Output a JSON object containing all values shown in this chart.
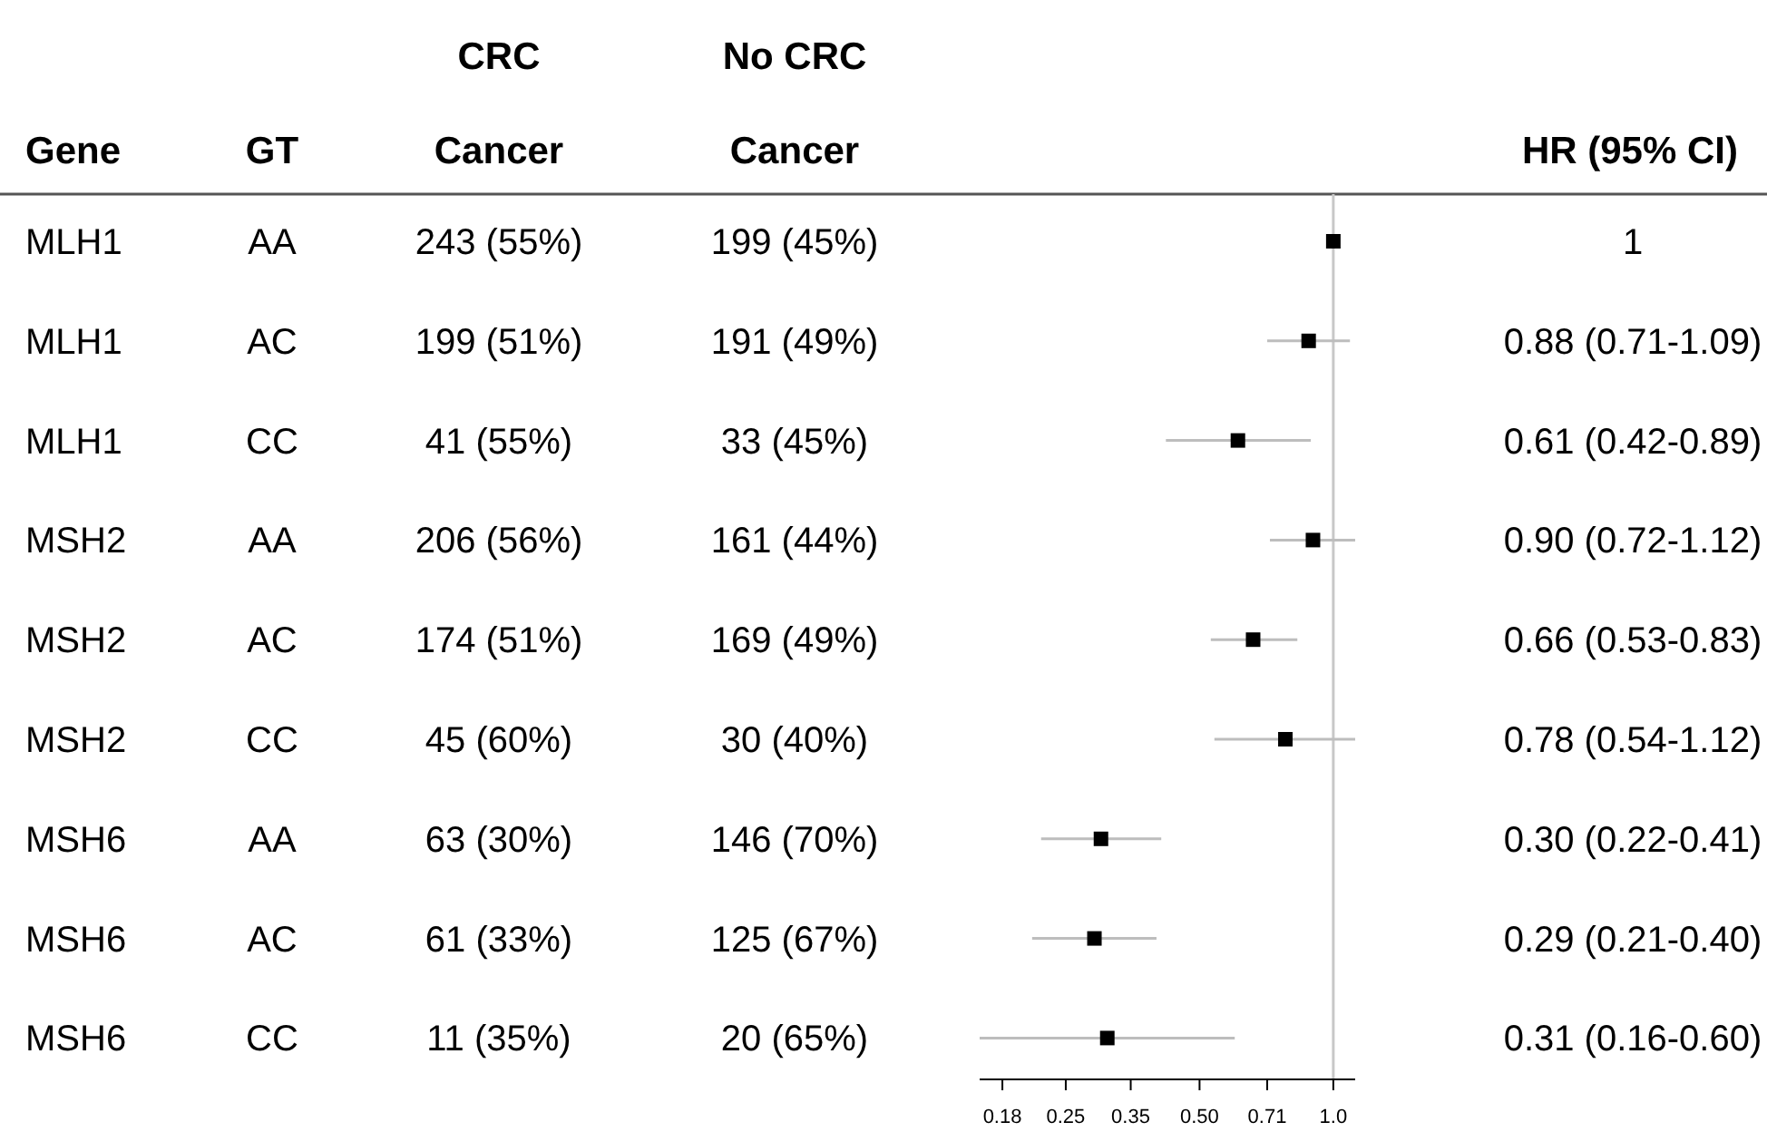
{
  "chart_data": {
    "type": "scatter",
    "orientation": "horizontal",
    "log": "x",
    "marker": "square",
    "categories": [
      null,
      null,
      null,
      null,
      null,
      null,
      null,
      null,
      null
    ],
    "series": [
      {
        "color": "#000000",
        "values": [
          1,
          0.88,
          0.61,
          0.9,
          0.66,
          0.78,
          0.3,
          0.29,
          0.31
        ],
        "errors": [
          null,
          [
            0.71,
            1.09
          ],
          [
            0.42,
            0.89
          ],
          [
            0.72,
            1.12
          ],
          [
            0.53,
            0.83
          ],
          [
            0.54,
            1.12
          ],
          [
            0.22,
            0.41
          ],
          [
            0.21,
            0.4
          ],
          [
            0.16,
            0.6
          ]
        ]
      }
    ],
    "xlim": [
      0.16,
      1.12
    ],
    "xticks": [
      0.18,
      0.25,
      0.35,
      {
        "value": 0.5,
        "label": "0.50"
      },
      0.71,
      {
        "value": 1,
        "label": "1.0"
      }
    ],
    "ref_lines": [
      {
        "axis": "x",
        "value": 1,
        "color": "#c8c8c8"
      }
    ],
    "annotations": [
      "Gene",
      "GT",
      "CRC",
      "Cancer",
      "No CRC",
      "Cancer",
      "HR (95% CI)",
      "MLH1",
      "AA",
      "243 (55%)",
      "199 (45%)",
      "1",
      "MLH1",
      "AC",
      "199 (51%)",
      "191 (49%)",
      "0.88 (0.71-1.09)",
      "MLH1",
      "CC",
      "41 (55%)",
      "33 (45%)",
      "0.61 (0.42-0.89)",
      "MSH2",
      "AA",
      "206 (56%)",
      "161 (44%)",
      "0.90 (0.72-1.12)",
      "MSH2",
      "AC",
      "174 (51%)",
      "169 (49%)",
      "0.66 (0.53-0.83)",
      "MSH2",
      "CC",
      "45 (60%)",
      "30 (40%)",
      "0.78 (0.54-1.12)",
      "MSH6",
      "AA",
      "63 (30%)",
      "146 (70%)",
      "0.30 (0.22-0.41)",
      "MSH6",
      "AC",
      "61 (33%)",
      "125 (67%)",
      "0.29 (0.21-0.40)",
      "MSH6",
      "CC",
      "11 (35%)",
      "20 (65%)",
      "0.31 (0.16-0.60)"
    ]
  }
}
